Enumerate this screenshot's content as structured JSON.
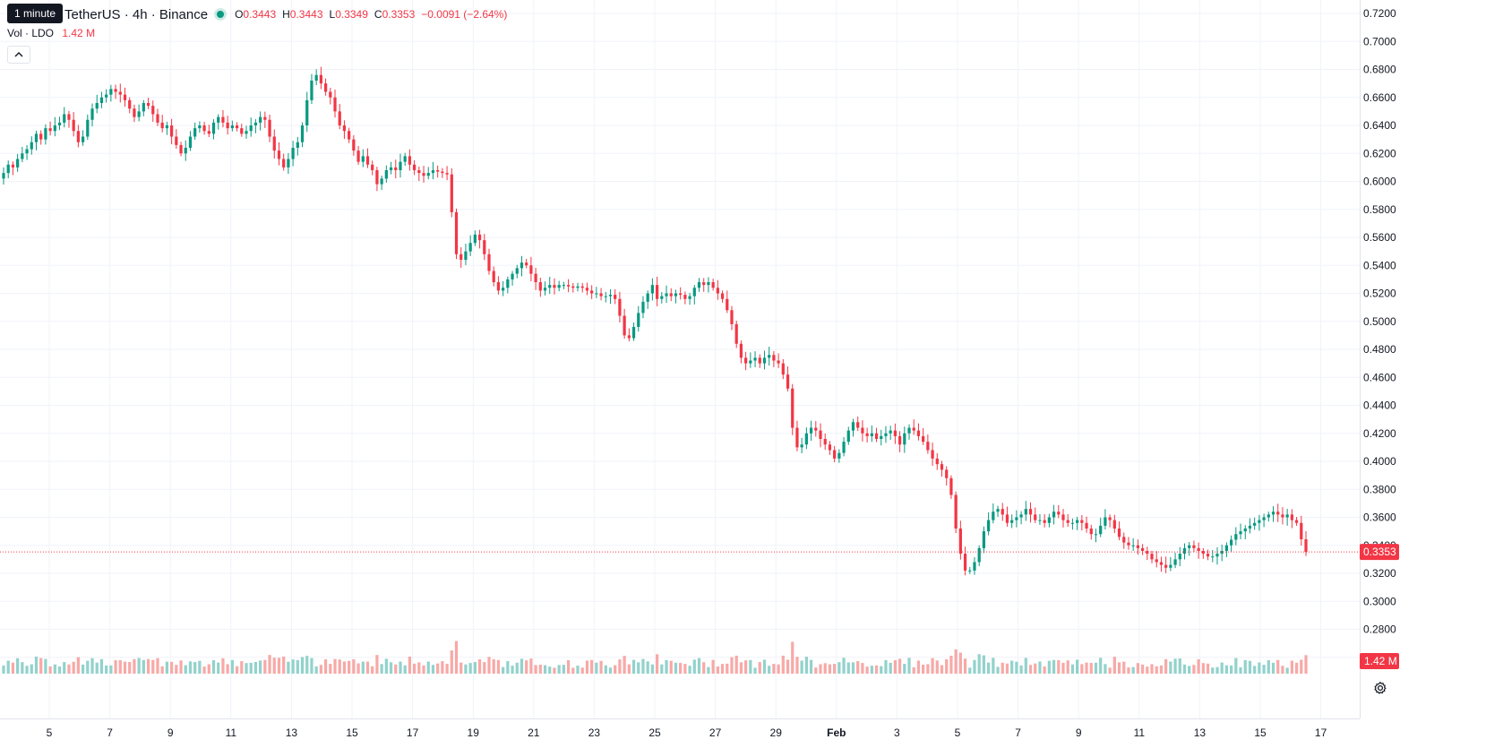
{
  "legend": {
    "tooltip": "1 minute",
    "title": "TetherUS · 4h · Binance",
    "open_label": "O",
    "open": "0.3443",
    "high_label": "H",
    "high": "0.3443",
    "low_label": "L",
    "low": "0.3349",
    "close_label": "C",
    "close": "0.3353",
    "change": "−0.0091 (−2.64%)",
    "vol_label": "Vol · LDO",
    "vol_value": "1.42 M"
  },
  "colors": {
    "up": "#089981",
    "down": "#f23645",
    "vol_up": "#92d2cc",
    "vol_down": "#f7a9a7",
    "grid": "#f0f3fa",
    "axis_text": "#131722"
  },
  "icons": {
    "collapse": "chevron-up-icon",
    "settings": "gear-icon"
  },
  "chart_data": {
    "type": "candlestick",
    "interval": "4h",
    "x_ticks": [
      "5",
      "7",
      "9",
      "11",
      "13",
      "15",
      "17",
      "19",
      "21",
      "23",
      "25",
      "27",
      "29",
      "Feb",
      "3",
      "5",
      "7",
      "9",
      "11",
      "13",
      "15",
      "17"
    ],
    "y_ticks": [
      "0.7200",
      "0.7000",
      "0.6800",
      "0.6600",
      "0.6400",
      "0.6200",
      "0.6000",
      "0.5800",
      "0.5600",
      "0.5400",
      "0.5200",
      "0.5000",
      "0.4800",
      "0.4600",
      "0.4400",
      "0.4200",
      "0.4000",
      "0.3800",
      "0.3600",
      "0.3400",
      "0.3200",
      "0.3000",
      "0.2800",
      "0.2600"
    ],
    "ylim": [
      0.256,
      0.723
    ],
    "last_price": 0.3353,
    "last_price_label": "0.3353",
    "volume_label": "1.42 M",
    "grid": true,
    "series": [
      {
        "date": "Jan 3",
        "points": [
          0.606,
          0.612,
          0.61,
          0.616,
          0.62,
          0.623,
          0.628,
          0.634,
          0.63,
          0.638
        ]
      },
      {
        "date": "Jan 5",
        "points": [
          0.636,
          0.64,
          0.642,
          0.648,
          0.644,
          0.636,
          0.628,
          0.632,
          0.644,
          0.652,
          0.656,
          0.66,
          0.662
        ]
      },
      {
        "date": "Jan 7",
        "points": [
          0.666,
          0.664,
          0.662,
          0.658,
          0.652,
          0.646,
          0.65,
          0.656,
          0.654,
          0.648,
          0.642,
          0.638,
          0.64
        ]
      },
      {
        "date": "Jan 9",
        "points": [
          0.632,
          0.626,
          0.62,
          0.624,
          0.632,
          0.638,
          0.64,
          0.636,
          0.634,
          0.642,
          0.646,
          0.642,
          0.638
        ]
      },
      {
        "date": "Jan 11",
        "points": [
          0.64,
          0.638,
          0.634,
          0.636,
          0.64,
          0.642,
          0.646,
          0.644,
          0.632,
          0.622,
          0.616,
          0.61,
          0.616
        ]
      },
      {
        "date": "Jan 13",
        "points": [
          0.624,
          0.628,
          0.64,
          0.658,
          0.672,
          0.676,
          0.67,
          0.664,
          0.66,
          0.65,
          0.64,
          0.636,
          0.63
        ]
      },
      {
        "date": "Jan 15",
        "points": [
          0.622,
          0.614,
          0.618,
          0.612,
          0.608,
          0.598,
          0.602,
          0.608,
          0.61,
          0.608,
          0.614,
          0.618,
          0.612
        ]
      },
      {
        "date": "Jan 17",
        "points": [
          0.608,
          0.606,
          0.604,
          0.606,
          0.608,
          0.607,
          0.606,
          0.605,
          0.578,
          0.548,
          0.544,
          0.55,
          0.556
        ]
      },
      {
        "date": "Jan 19",
        "points": [
          0.562,
          0.558,
          0.548,
          0.536,
          0.528,
          0.522,
          0.524,
          0.53,
          0.534,
          0.538,
          0.542,
          0.54,
          0.534
        ]
      },
      {
        "date": "Jan 21",
        "points": [
          0.528,
          0.522,
          0.524,
          0.526,
          0.524,
          0.526,
          0.526,
          0.525,
          0.524,
          0.525,
          0.524,
          0.522,
          0.52
        ]
      },
      {
        "date": "Jan 23",
        "points": [
          0.52,
          0.518,
          0.518,
          0.519,
          0.516,
          0.504,
          0.49,
          0.488,
          0.496,
          0.506,
          0.514,
          0.52,
          0.526
        ]
      },
      {
        "date": "Jan 25",
        "points": [
          0.516,
          0.518,
          0.52,
          0.518,
          0.52,
          0.519,
          0.516,
          0.518,
          0.524,
          0.528,
          0.526,
          0.528,
          0.524
        ]
      },
      {
        "date": "Jan 27",
        "points": [
          0.52,
          0.516,
          0.508,
          0.498,
          0.484,
          0.474,
          0.47,
          0.472,
          0.474,
          0.47,
          0.474,
          0.476,
          0.472
        ]
      },
      {
        "date": "Jan 29",
        "points": [
          0.47,
          0.462,
          0.452,
          0.424,
          0.41,
          0.412,
          0.42,
          0.424,
          0.422,
          0.416,
          0.412,
          0.408,
          0.402
        ]
      },
      {
        "date": "Jan 31",
        "points": [
          0.406,
          0.414,
          0.422,
          0.428,
          0.424,
          0.42,
          0.418,
          0.42,
          0.416,
          0.418,
          0.42,
          0.422,
          0.418
        ]
      },
      {
        "date": "Feb 2",
        "points": [
          0.412,
          0.42,
          0.424,
          0.422,
          0.418,
          0.414,
          0.408,
          0.402,
          0.398,
          0.394,
          0.388,
          0.376,
          0.352
        ]
      },
      {
        "date": "Feb 4",
        "points": [
          0.334,
          0.322,
          0.322,
          0.328,
          0.338,
          0.35,
          0.358,
          0.364,
          0.366,
          0.362,
          0.356,
          0.358,
          0.36
        ]
      },
      {
        "date": "Feb 6",
        "points": [
          0.362,
          0.366,
          0.362,
          0.358,
          0.358,
          0.356,
          0.36,
          0.364,
          0.362,
          0.358,
          0.356,
          0.356,
          0.358
        ]
      },
      {
        "date": "Feb 8",
        "points": [
          0.356,
          0.352,
          0.348,
          0.348,
          0.354,
          0.36,
          0.358,
          0.352,
          0.346,
          0.342,
          0.34,
          0.34,
          0.338
        ]
      },
      {
        "date": "Feb 10",
        "points": [
          0.336,
          0.334,
          0.33,
          0.328,
          0.326,
          0.324,
          0.326,
          0.33,
          0.334,
          0.338,
          0.34,
          0.338,
          0.336
        ]
      },
      {
        "date": "Feb 12",
        "points": [
          0.334,
          0.332,
          0.332,
          0.334,
          0.336,
          0.34,
          0.344,
          0.348,
          0.35,
          0.352,
          0.354,
          0.356,
          0.358
        ]
      },
      {
        "date": "Feb 14",
        "points": [
          0.36,
          0.362,
          0.364,
          0.362,
          0.36,
          0.362,
          0.358,
          0.356,
          0.3443,
          0.3353
        ]
      }
    ],
    "volume_spikes": [
      {
        "near": "Jan 18",
        "value": 3.0
      },
      {
        "near": "Jan 25",
        "value": 2.1
      },
      {
        "near": "Jan 31",
        "value": 4.2
      },
      {
        "near": "Feb 4",
        "value": 5.0
      },
      {
        "near": "Feb 5",
        "value": 4.6
      },
      {
        "near": "Feb 7",
        "value": 3.5
      }
    ]
  }
}
